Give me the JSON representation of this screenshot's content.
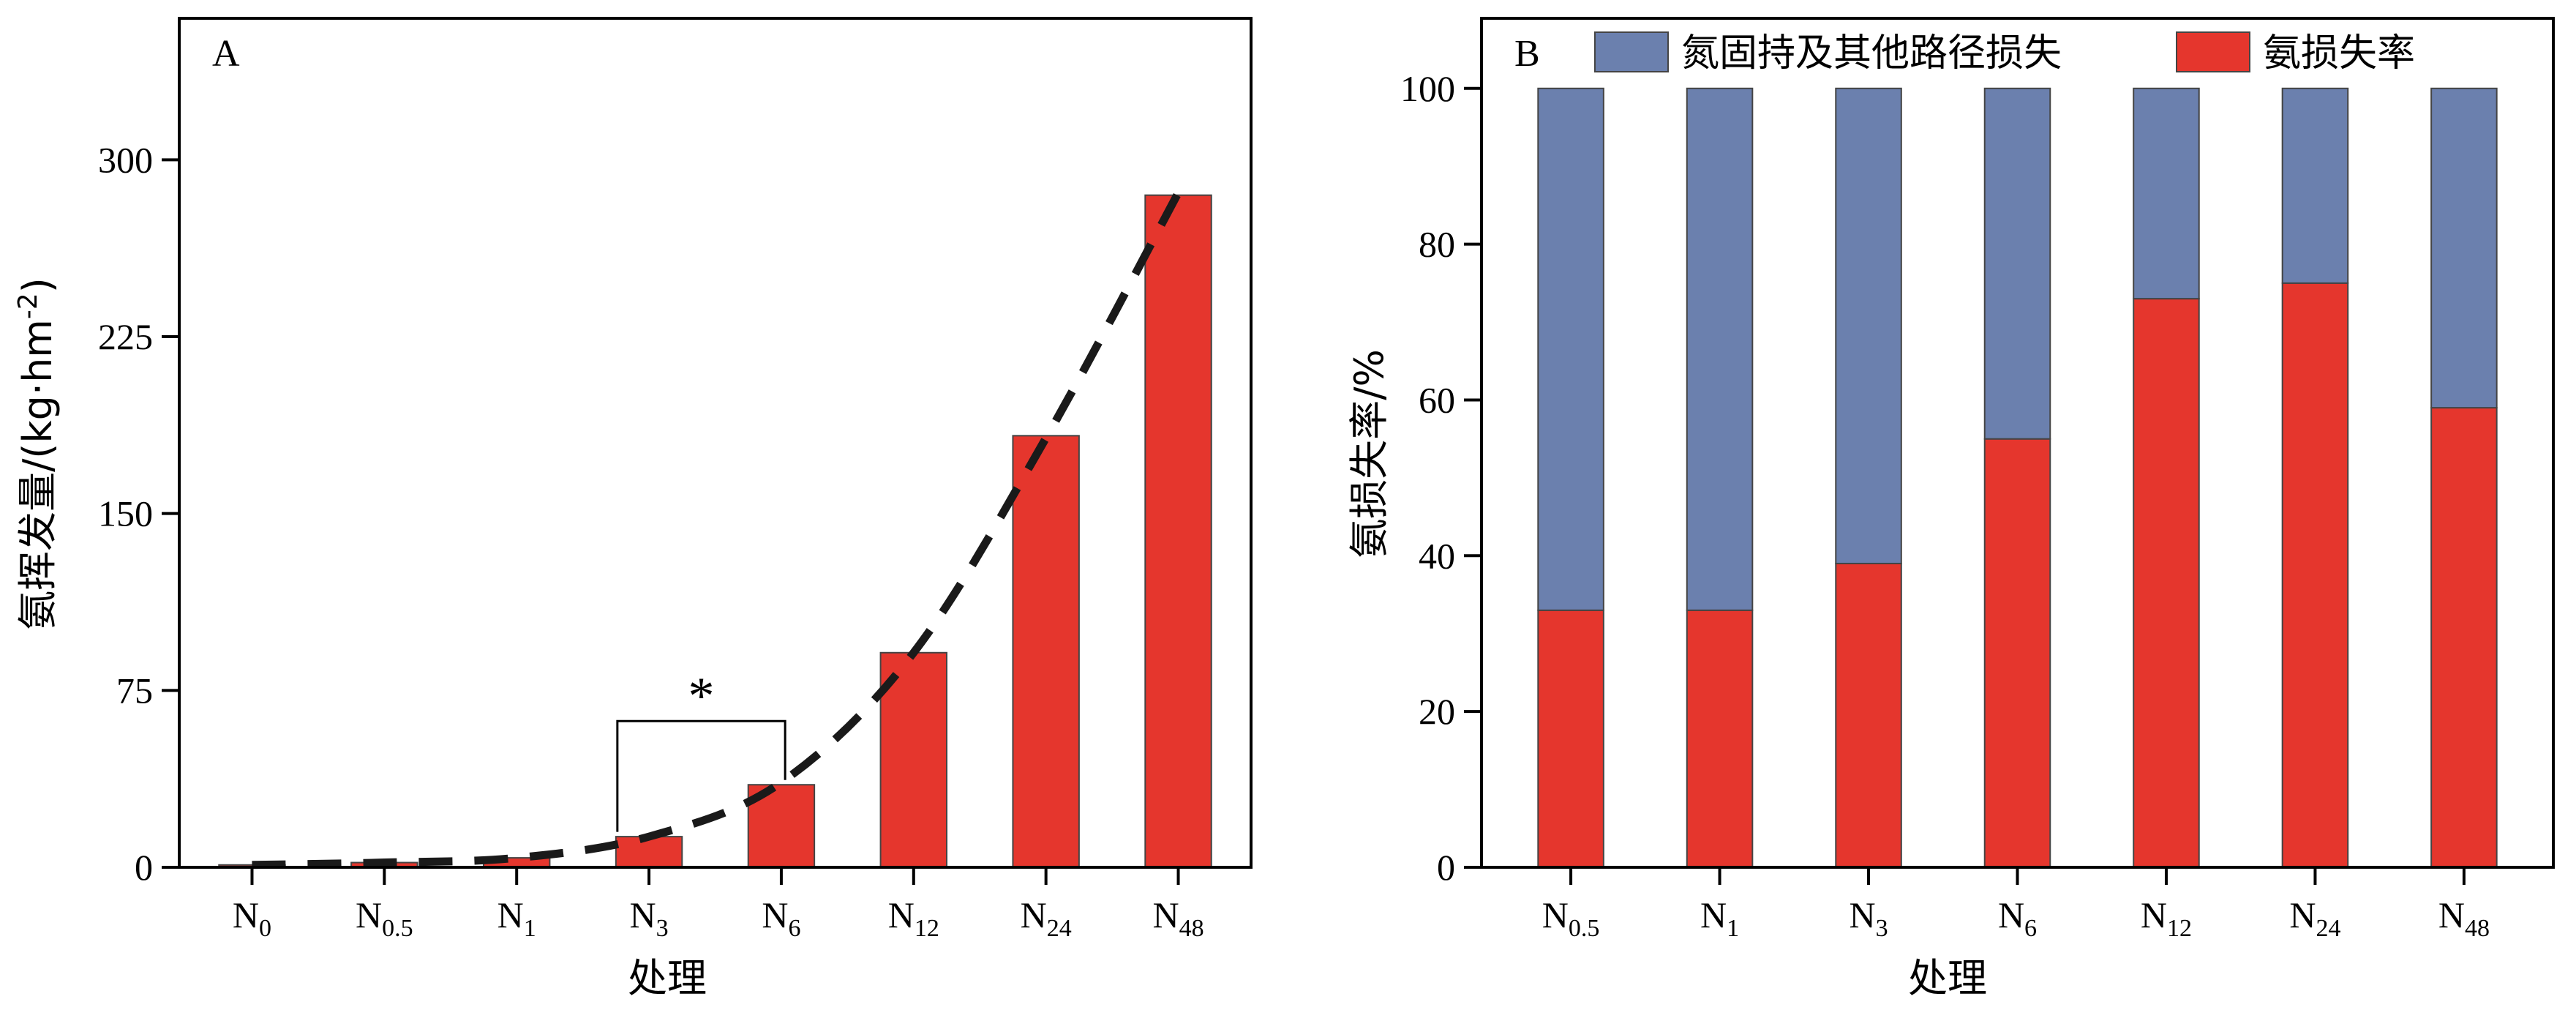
{
  "chart_data": [
    {
      "panel": "A",
      "type": "bar",
      "categories": [
        "N0",
        "N0.5",
        "N1",
        "N3",
        "N6",
        "N12",
        "N24",
        "N48"
      ],
      "category_labels": [
        {
          "base": "N",
          "sub": "0"
        },
        {
          "base": "N",
          "sub": "0.5"
        },
        {
          "base": "N",
          "sub": "1"
        },
        {
          "base": "N",
          "sub": "3"
        },
        {
          "base": "N",
          "sub": "6"
        },
        {
          "base": "N",
          "sub": "12"
        },
        {
          "base": "N",
          "sub": "24"
        },
        {
          "base": "N",
          "sub": "48"
        }
      ],
      "values": [
        1,
        2,
        4,
        13,
        35,
        91,
        183,
        285
      ],
      "trend_line": [
        1,
        2,
        4,
        13,
        36,
        91,
        182,
        286
      ],
      "xlabel": "处理",
      "ylabel": "氨挥发量/(kg·hm-2)",
      "ylim": [
        0,
        360
      ],
      "yticks": [
        0,
        75,
        150,
        225,
        300
      ],
      "significance": {
        "between": [
          "N3",
          "N6"
        ],
        "label": "*"
      },
      "colors": {
        "bar": "#e5362d",
        "trend": "#1a1a1a"
      }
    },
    {
      "panel": "B",
      "type": "bar",
      "stacked": true,
      "categories": [
        "N0.5",
        "N1",
        "N3",
        "N6",
        "N12",
        "N24",
        "N48"
      ],
      "category_labels": [
        {
          "base": "N",
          "sub": "0.5"
        },
        {
          "base": "N",
          "sub": "1"
        },
        {
          "base": "N",
          "sub": "3"
        },
        {
          "base": "N",
          "sub": "6"
        },
        {
          "base": "N",
          "sub": "12"
        },
        {
          "base": "N",
          "sub": "24"
        },
        {
          "base": "N",
          "sub": "48"
        }
      ],
      "series": [
        {
          "name": "氨损失率",
          "values": [
            33,
            33,
            39,
            55,
            73,
            75,
            59
          ],
          "color": "#e5362d"
        },
        {
          "name": "氮固持及其他路径损失",
          "values": [
            67,
            67,
            61,
            45,
            27,
            25,
            41
          ],
          "color": "#6b80ae"
        }
      ],
      "xlabel": "处理",
      "ylabel": "氨损失率/%",
      "ylim": [
        0,
        109
      ],
      "yticks": [
        0,
        20,
        40,
        60,
        80,
        100
      ],
      "legend": "top"
    }
  ]
}
